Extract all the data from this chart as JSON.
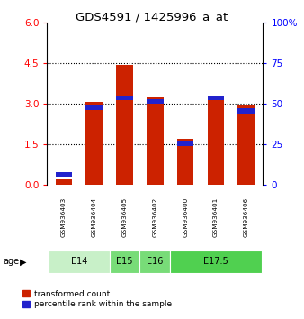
{
  "title": "GDS4591 / 1425996_a_at",
  "samples": [
    "GSM936403",
    "GSM936404",
    "GSM936405",
    "GSM936402",
    "GSM936400",
    "GSM936401",
    "GSM936406"
  ],
  "transformed_count": [
    0.22,
    3.08,
    4.42,
    3.22,
    1.72,
    3.28,
    2.98
  ],
  "percentile_rank_pct": [
    8,
    49,
    55,
    53,
    27,
    55,
    47
  ],
  "ylim_left": [
    0,
    6
  ],
  "ylim_right": [
    0,
    100
  ],
  "yticks_left": [
    0,
    1.5,
    3,
    4.5,
    6
  ],
  "yticks_right": [
    0,
    25,
    50,
    75,
    100
  ],
  "bar_color_red": "#cc2200",
  "bar_color_blue": "#2222cc",
  "bar_width": 0.55,
  "age_group_positions": {
    "E14": [
      0,
      1
    ],
    "E15": [
      2,
      2
    ],
    "E16": [
      3,
      3
    ],
    "E17.5": [
      4,
      6
    ]
  },
  "age_group_colors": {
    "E14": "#c8f0c8",
    "E15": "#78dc78",
    "E16": "#78dc78",
    "E17.5": "#50d050"
  },
  "legend_red_label": "transformed count",
  "legend_blue_label": "percentile rank within the sample",
  "background_color": "#ffffff",
  "sample_area_color": "#c8c8c8"
}
